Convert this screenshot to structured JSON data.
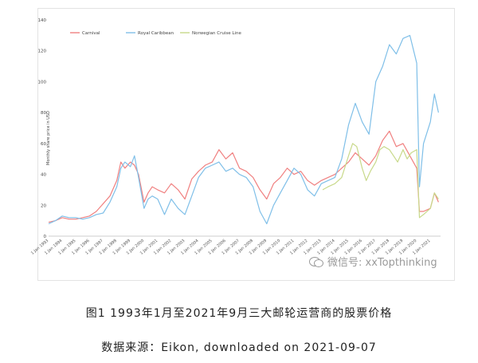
{
  "chart_data": {
    "type": "line",
    "ylabel": "Monthly share price in USD",
    "xlabel": "",
    "ylim": [
      0,
      140
    ],
    "y_ticks": [
      0,
      20,
      40,
      60,
      80,
      100,
      120,
      140
    ],
    "x_range": [
      1993.0,
      2021.75
    ],
    "x_tick_labels": [
      "1 Jan 1993",
      "1 Jan 1994",
      "1 Jan 1995",
      "1 Jan 1996",
      "1 Jan 1997",
      "1 Jan 1998",
      "1 Jan 1999",
      "1 Jan 2000",
      "1 Jan 2001",
      "1 Jan 2002",
      "1 Jan 2003",
      "1 Jan 2004",
      "1 Jan 2005",
      "1 Jan 2006",
      "1 Jan 2007",
      "1 Jan 2008",
      "1 Jan 2009",
      "1 Jan 2010",
      "1 Jan 2011",
      "1 Jan 2012",
      "1 Jan 2013",
      "1 Jan 2014",
      "1 Jan 2015",
      "1 Jan 2016",
      "1 Jan 2017",
      "1 Jan 2018",
      "1 Jan 2019",
      "1 Jan 2020",
      "1 Jan 2021"
    ],
    "x_tick_values": [
      1993,
      1994,
      1995,
      1996,
      1997,
      1998,
      1999,
      2000,
      2001,
      2002,
      2003,
      2004,
      2005,
      2006,
      2007,
      2008,
      2009,
      2010,
      2011,
      2012,
      2013,
      2014,
      2015,
      2016,
      2017,
      2018,
      2019,
      2020,
      2021
    ],
    "grid": false,
    "legend": "top-left",
    "series": [
      {
        "name": "Carnival",
        "color": "#f08080",
        "x": [
          1993,
          1993.5,
          1994,
          1994.5,
          1995,
          1995.5,
          1996,
          1996.5,
          1997,
          1997.5,
          1998,
          1998.3,
          1998.6,
          1999,
          1999.3,
          1999.6,
          2000,
          2000.3,
          2000.6,
          2001,
          2001.5,
          2002,
          2002.5,
          2003,
          2003.5,
          2004,
          2004.5,
          2005,
          2005.5,
          2006,
          2006.5,
          2007,
          2007.5,
          2008,
          2008.5,
          2009,
          2009.5,
          2010,
          2010.5,
          2011,
          2011.5,
          2012,
          2012.5,
          2013,
          2013.5,
          2014,
          2014.5,
          2015,
          2015.5,
          2016,
          2016.5,
          2017,
          2017.5,
          2018,
          2018.5,
          2019,
          2019.5,
          2020,
          2020.2,
          2020.5,
          2021,
          2021.3,
          2021.6
        ],
        "y": [
          9,
          10,
          12,
          11,
          11,
          12,
          13,
          16,
          21,
          26,
          36,
          48,
          44,
          48,
          46,
          40,
          22,
          28,
          32,
          30,
          28,
          34,
          30,
          24,
          37,
          42,
          46,
          48,
          56,
          50,
          54,
          44,
          42,
          38,
          30,
          24,
          34,
          38,
          44,
          40,
          42,
          36,
          33,
          36,
          38,
          40,
          44,
          48,
          54,
          50,
          46,
          52,
          62,
          68,
          58,
          60,
          52,
          44,
          16,
          16,
          18,
          28,
          22
        ]
      },
      {
        "name": "Royal Caribbean",
        "color": "#7fbfe8",
        "x": [
          1993,
          1993.5,
          1994,
          1994.5,
          1995,
          1995.5,
          1996,
          1996.5,
          1997,
          1997.5,
          1998,
          1998.3,
          1998.6,
          1999,
          1999.3,
          1999.6,
          2000,
          2000.3,
          2000.6,
          2001,
          2001.5,
          2002,
          2002.5,
          2003,
          2003.5,
          2004,
          2004.5,
          2005,
          2005.5,
          2006,
          2006.5,
          2007,
          2007.5,
          2008,
          2008.5,
          2009,
          2009.5,
          2010,
          2010.5,
          2011,
          2011.5,
          2012,
          2012.5,
          2013,
          2013.5,
          2014,
          2014.5,
          2015,
          2015.5,
          2016,
          2016.5,
          2017,
          2017.5,
          2018,
          2018.5,
          2019,
          2019.5,
          2020,
          2020.2,
          2020.5,
          2021,
          2021.3,
          2021.6
        ],
        "y": [
          8,
          10,
          13,
          12,
          12,
          11,
          12,
          14,
          15,
          22,
          32,
          44,
          48,
          45,
          52,
          38,
          18,
          24,
          26,
          24,
          14,
          24,
          18,
          14,
          26,
          38,
          44,
          46,
          48,
          42,
          44,
          40,
          38,
          32,
          16,
          8,
          20,
          28,
          36,
          44,
          40,
          30,
          26,
          34,
          36,
          38,
          50,
          72,
          86,
          74,
          66,
          100,
          110,
          124,
          118,
          128,
          130,
          112,
          32,
          60,
          74,
          92,
          80
        ]
      },
      {
        "name": "Norwegian Cruise Line",
        "color": "#c8d98a",
        "x": [
          2013.1,
          2013.5,
          2014,
          2014.5,
          2015,
          2015.3,
          2015.6,
          2016,
          2016.3,
          2016.6,
          2017,
          2017.3,
          2017.6,
          2018,
          2018.3,
          2018.6,
          2019,
          2019.3,
          2019.6,
          2020,
          2020.2,
          2020.5,
          2021,
          2021.3,
          2021.6
        ],
        "y": [
          30,
          32,
          34,
          38,
          52,
          60,
          58,
          44,
          36,
          42,
          48,
          56,
          58,
          56,
          52,
          48,
          56,
          50,
          54,
          56,
          12,
          14,
          18,
          28,
          24
        ]
      }
    ]
  },
  "watermark_text": "微信号: xxTopthinking",
  "caption": "图1 1993年1月至2021年9月三大邮轮运营商的股票价格",
  "source": "数据来源：Eikon, downloaded on 2021-09-07"
}
